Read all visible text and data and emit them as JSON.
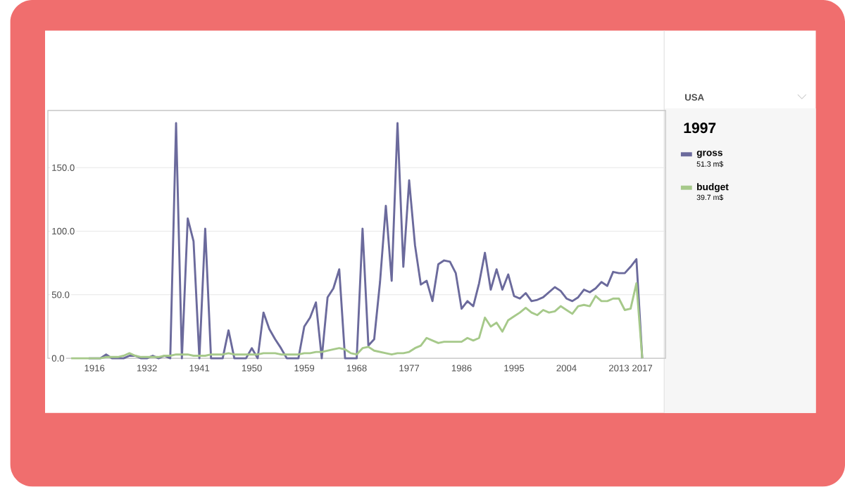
{
  "chart_data": {
    "type": "line",
    "categories": [
      null,
      null,
      null,
      null,
      "1916",
      null,
      null,
      null,
      null,
      null,
      null,
      null,
      null,
      "1932",
      null,
      null,
      null,
      null,
      null,
      null,
      null,
      null,
      "1941",
      null,
      null,
      null,
      null,
      null,
      null,
      null,
      null,
      "1950",
      null,
      null,
      null,
      null,
      null,
      null,
      null,
      null,
      "1959",
      null,
      null,
      null,
      null,
      null,
      null,
      null,
      null,
      "1968",
      null,
      null,
      null,
      null,
      null,
      null,
      null,
      null,
      "1977",
      null,
      null,
      null,
      null,
      null,
      null,
      null,
      null,
      "1986",
      null,
      null,
      null,
      null,
      null,
      null,
      null,
      null,
      "1995",
      null,
      null,
      null,
      null,
      null,
      null,
      null,
      null,
      "2004",
      null,
      null,
      null,
      null,
      null,
      null,
      null,
      null,
      "2013",
      null,
      null,
      null,
      "2017"
    ],
    "series": [
      {
        "name": "gross",
        "color": "#6b6a9c",
        "values": [
          null,
          null,
          null,
          0,
          0,
          0,
          3,
          0,
          0,
          0,
          2,
          2,
          0,
          0,
          2,
          0,
          2,
          0,
          185,
          0,
          110,
          92,
          0,
          102,
          0,
          0,
          0,
          22,
          0,
          0,
          0,
          8,
          0,
          36,
          23,
          15,
          8,
          0,
          0,
          0,
          25,
          32,
          44,
          0,
          48,
          55,
          70,
          0,
          0,
          0,
          102,
          10,
          15,
          60,
          120,
          61,
          185,
          72,
          140,
          89,
          58,
          61,
          45,
          74,
          77,
          76,
          67,
          39,
          45,
          41,
          59,
          83,
          54,
          70,
          54,
          66,
          49,
          47,
          51.3,
          45,
          46,
          48,
          52,
          56,
          53,
          47,
          45,
          48,
          54,
          52,
          55,
          60,
          57,
          68,
          67,
          67,
          72,
          78,
          0
        ]
      },
      {
        "name": "budget",
        "color": "#a6c98a",
        "values": [
          0,
          0,
          0,
          0,
          0,
          0,
          1,
          1,
          1,
          2,
          4,
          2,
          1,
          1,
          1,
          1,
          2,
          2,
          3,
          3,
          3,
          2,
          2,
          2,
          3,
          3,
          3,
          4,
          3,
          3,
          3,
          3,
          3,
          4,
          4,
          4,
          3,
          3,
          3,
          3,
          4,
          4,
          5,
          5,
          6,
          7,
          8,
          7,
          4,
          3,
          8,
          9,
          6,
          5,
          4,
          3,
          4,
          4,
          5,
          8,
          10,
          16,
          14,
          12,
          13,
          13,
          13,
          13,
          16,
          14,
          16,
          32,
          25,
          28,
          21,
          30,
          33,
          36,
          39.7,
          36,
          34,
          38,
          36,
          37,
          41,
          38,
          35,
          41,
          42,
          41,
          49,
          45,
          45,
          47,
          47,
          38,
          39,
          59,
          0
        ]
      }
    ],
    "ylim": [
      0,
      195
    ],
    "yticks": [
      {
        "value": 0,
        "label": "0.0"
      },
      {
        "value": 50,
        "label": "50.0"
      },
      {
        "value": 100,
        "label": "100.0"
      },
      {
        "value": 150,
        "label": "150.0"
      }
    ],
    "grid": "y",
    "legend": "right",
    "legend_title": "USA",
    "annotations": [
      "1997",
      "51.3 m$",
      "39.7 m$"
    ]
  }
}
